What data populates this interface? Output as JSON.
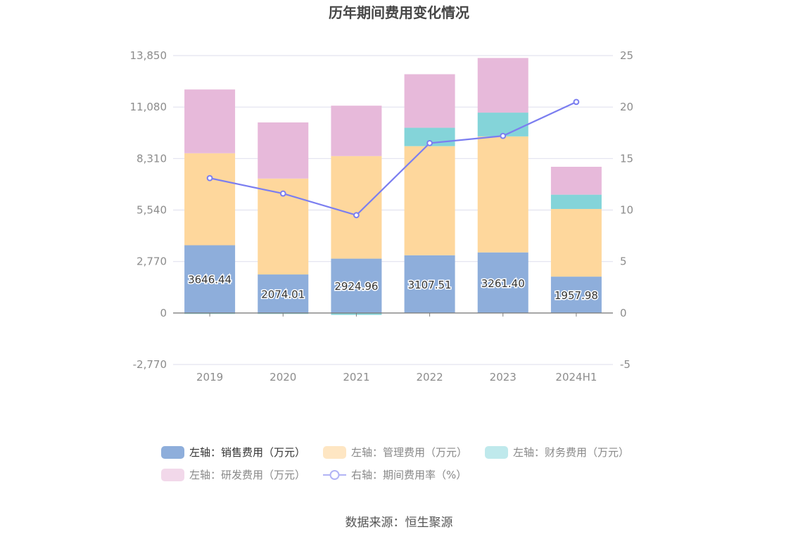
{
  "chart_data": {
    "type": "bar",
    "title": "历年期间费用变化情况",
    "categories": [
      "2019",
      "2020",
      "2021",
      "2022",
      "2023",
      "2024H1"
    ],
    "left_axis": {
      "ticks": [
        "13,850",
        "11,080",
        "8,310",
        "5,540",
        "2,770",
        "0",
        "-2,770"
      ],
      "tick_values": [
        13850,
        11080,
        8310,
        5540,
        2770,
        0,
        -2770
      ],
      "ylim": [
        -2770,
        13850
      ]
    },
    "right_axis": {
      "ticks": [
        "25",
        "20",
        "15",
        "10",
        "5",
        "0",
        "-5"
      ],
      "tick_values": [
        25,
        20,
        15,
        10,
        5,
        0,
        -5
      ],
      "ylim": [
        -5,
        25
      ]
    },
    "series": [
      {
        "name": "左轴：销售费用（万元）",
        "type": "bar",
        "axis": "left",
        "color": "#8eaedb",
        "legend_color": "#8eaedb",
        "values": [
          3646.44,
          2074.01,
          2924.96,
          3107.51,
          3261.4,
          1957.98
        ],
        "labels": [
          "3646.44",
          "2074.01",
          "2924.96",
          "3107.51",
          "3261.40",
          "1957.98"
        ]
      },
      {
        "name": "左轴：管理费用（万元）",
        "type": "bar",
        "axis": "left",
        "color": "#fed79c",
        "legend_color": "#fee6c3",
        "values": [
          4950,
          5160,
          5520,
          5870,
          6240,
          3640
        ]
      },
      {
        "name": "左轴：财务费用（万元）",
        "type": "bar",
        "axis": "left",
        "color": "#84d4d9",
        "legend_color": "#bfe9ec",
        "values": [
          -50,
          -50,
          -100,
          990,
          1280,
          770
        ]
      },
      {
        "name": "左轴：研发费用（万元）",
        "type": "bar",
        "axis": "left",
        "color": "#e7b9da",
        "legend_color": "#f2d8ea",
        "values": [
          3430,
          3020,
          2710,
          2880,
          2940,
          1500
        ]
      },
      {
        "name": "右轴：期间费用率（%）",
        "type": "line",
        "axis": "right",
        "color": "#7b7ef0",
        "legend_color": "#b2b4f5",
        "values": [
          13.1,
          11.6,
          9.5,
          16.5,
          17.2,
          20.5
        ]
      }
    ],
    "grid": true,
    "legend_position": "bottom"
  },
  "source": "数据来源：恒生聚源"
}
